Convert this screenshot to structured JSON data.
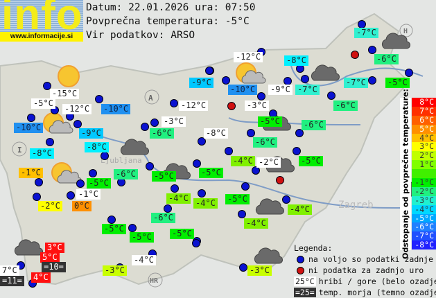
{
  "logo": {
    "word": "info",
    "url": "www.informacije.si"
  },
  "header": {
    "date_line": "Datum: 22.01.2026 ura: 07:50",
    "avg_line": "Povprečna temperatura: -5°C",
    "source_line": "Vir podatkov: ARSO"
  },
  "stations": [
    {
      "text": "-7°C",
      "color": "#30f0d0"
    },
    {
      "text": "-6°C",
      "color": "#20f080"
    },
    {
      "text": "-8°C",
      "color": "#00f0ff"
    },
    {
      "text": "-12°C",
      "color": "#ffffff"
    },
    {
      "text": "-9°C",
      "color": "#00c8ff"
    },
    {
      "text": "-10°C",
      "color": "#2090f0"
    },
    {
      "text": "-9°C",
      "color": "#ffffff"
    },
    {
      "text": "-7°C",
      "color": "#30f0d0"
    },
    {
      "text": "-7°C",
      "color": "#30f0d0"
    },
    {
      "text": "-5°C",
      "color": "#00ee00"
    },
    {
      "text": "-15°C",
      "color": "#ffffff"
    },
    {
      "text": "-5°C",
      "color": "#ffffff"
    },
    {
      "text": "-12°C",
      "color": "#ffffff"
    },
    {
      "text": "-10°C",
      "color": "#2090f0"
    },
    {
      "text": "-12°C",
      "color": "#ffffff"
    },
    {
      "text": "-3°C",
      "color": "#ffffff"
    },
    {
      "text": "-6°C",
      "color": "#20f080"
    },
    {
      "text": "-10°C",
      "color": "#2090f0"
    },
    {
      "text": "-9°C",
      "color": "#00c8ff"
    },
    {
      "text": "-5°C",
      "color": "#00ee00"
    },
    {
      "text": "-6°C",
      "color": "#20f080"
    },
    {
      "text": "-3°C",
      "color": "#ffffff"
    },
    {
      "text": "-6°C",
      "color": "#20f080"
    },
    {
      "text": "-8°C",
      "color": "#ffffff"
    },
    {
      "text": "-8°C",
      "color": "#00f0ff"
    },
    {
      "text": "-6°C",
      "color": "#20f080"
    },
    {
      "text": "-8°C",
      "color": "#00f0ff"
    },
    {
      "text": "-4°C",
      "color": "#80f000"
    },
    {
      "text": "-2°C",
      "color": "#ffffff"
    },
    {
      "text": "-5°C",
      "color": "#00ee00"
    },
    {
      "text": "-1°C",
      "color": "#ffc000"
    },
    {
      "text": "-6°C",
      "color": "#20f080"
    },
    {
      "text": "-5°C",
      "color": "#00ee00"
    },
    {
      "text": "-5°C",
      "color": "#00ee00"
    },
    {
      "text": "-5°C",
      "color": "#00ee00"
    },
    {
      "text": "-1°C",
      "color": "#ffffff"
    },
    {
      "text": "-4°C",
      "color": "#80f000"
    },
    {
      "text": "-4°C",
      "color": "#80f000"
    },
    {
      "text": "-5°C",
      "color": "#00ee00"
    },
    {
      "text": "-2°C",
      "color": "#ffff00"
    },
    {
      "text": "0°C",
      "color": "#ff9000"
    },
    {
      "text": "-4°C",
      "color": "#80f000"
    },
    {
      "text": "-6°C",
      "color": "#20f080"
    },
    {
      "text": "-5°C",
      "color": "#00ee00"
    },
    {
      "text": "-5°C",
      "color": "#00ee00"
    },
    {
      "text": "-5°C",
      "color": "#00ee00"
    },
    {
      "text": "-4°C",
      "color": "#80f000"
    },
    {
      "text": "3°C",
      "color": "#ff1010"
    },
    {
      "text": "5°C",
      "color": "#ff1010"
    },
    {
      "text": "=10=",
      "color": "#333333"
    },
    {
      "text": "7°C",
      "color": "#ffffff"
    },
    {
      "text": "=11=",
      "color": "#333333"
    },
    {
      "text": "4°C",
      "color": "#ff1010"
    },
    {
      "text": "-4°C",
      "color": "#ffffff"
    },
    {
      "text": "-3°C",
      "color": "#c8ff00"
    },
    {
      "text": "-3°C",
      "color": "#c8ff00"
    }
  ],
  "scale": {
    "title": "Odstopanje od povprečne temperature:",
    "steps": [
      {
        "label": "8°C",
        "color": "#ff0000"
      },
      {
        "label": "7°C",
        "color": "#ff3000"
      },
      {
        "label": "6°C",
        "color": "#ff6000"
      },
      {
        "label": "5°C",
        "color": "#ff9000"
      },
      {
        "label": "4°C",
        "color": "#ffc000"
      },
      {
        "label": "3°C",
        "color": "#ffff00"
      },
      {
        "label": "2°C",
        "color": "#c0ff00"
      },
      {
        "label": "1°C",
        "color": "#80ff00"
      },
      {
        "label": "",
        "color": "#40f000"
      },
      {
        "label": "-1°C",
        "color": "#00ee00"
      },
      {
        "label": "-2°C",
        "color": "#20f080"
      },
      {
        "label": "-3°C",
        "color": "#20f0d0"
      },
      {
        "label": "-4°C",
        "color": "#00d8ff"
      },
      {
        "label": "-5°C",
        "color": "#00a8ff"
      },
      {
        "label": "-6°C",
        "color": "#2080ff"
      },
      {
        "label": "-7°C",
        "color": "#2050ff"
      },
      {
        "label": "-8°C",
        "color": "#2020ff"
      }
    ]
  },
  "legend": {
    "title": "Legenda:",
    "blue_dot": "na voljo so podatki zadnje ure",
    "red_dot": "ni podatka za zadnjo uro",
    "white_sample": "25°C",
    "white_text": "hribi / gore (belo ozadje)",
    "dark_sample": "=25=",
    "dark_text": "temp. morja (temno ozadje)"
  },
  "map_labels": {
    "austria": "A",
    "italy": "I",
    "croatia": "HR",
    "hungary": "H",
    "ljubljana": "Ljubljana",
    "zagreb": "Zagreb"
  }
}
